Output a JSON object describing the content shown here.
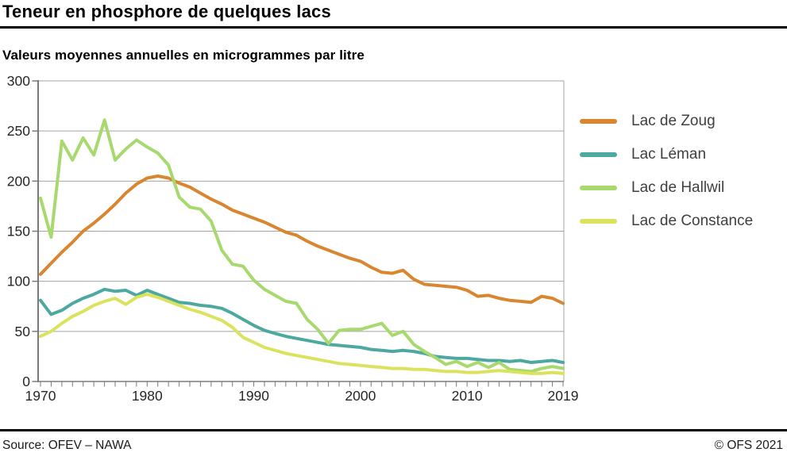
{
  "header": {
    "title": "Teneur en phosphore de quelques lacs",
    "subtitle": "Valeurs moyennes annuelles en microgrammes par litre"
  },
  "footer": {
    "source": "Source: OFEV – NAWA",
    "copyright": "© OFS 2021"
  },
  "chart_data": {
    "type": "line",
    "title": "Teneur en phosphore de quelques lacs",
    "subtitle": "Valeurs moyennes annuelles en microgrammes par litre",
    "xlabel": "",
    "ylabel": "microgrammes par litre",
    "ylim": [
      0,
      300
    ],
    "yticks": [
      0,
      50,
      100,
      150,
      200,
      250,
      300
    ],
    "xtick_labels": [
      "1970",
      "1980",
      "1990",
      "2000",
      "2010",
      "2019"
    ],
    "grid": true,
    "legend_position": "right",
    "x": [
      1970,
      1971,
      1972,
      1973,
      1974,
      1975,
      1976,
      1977,
      1978,
      1979,
      1980,
      1981,
      1982,
      1983,
      1984,
      1985,
      1986,
      1987,
      1988,
      1989,
      1990,
      1991,
      1992,
      1993,
      1994,
      1995,
      1996,
      1997,
      1998,
      1999,
      2000,
      2001,
      2002,
      2003,
      2004,
      2005,
      2006,
      2007,
      2008,
      2009,
      2010,
      2011,
      2012,
      2013,
      2014,
      2015,
      2016,
      2017,
      2018,
      2019
    ],
    "series": [
      {
        "name": "Lac de Zoug",
        "color": "#d8862f",
        "values": [
          107,
          118,
          129,
          139,
          150,
          158,
          167,
          177,
          188,
          197,
          203,
          205,
          203,
          198,
          194,
          188,
          182,
          177,
          171,
          167,
          163,
          159,
          154,
          149,
          146,
          140,
          135,
          131,
          127,
          123,
          120,
          114,
          109,
          108,
          111,
          102,
          97,
          96,
          95,
          94,
          91,
          85,
          86,
          83,
          81,
          80,
          79,
          85,
          83,
          78
        ]
      },
      {
        "name": "Lac Léman",
        "color": "#4da8a0",
        "values": [
          81,
          67,
          71,
          78,
          83,
          87,
          92,
          90,
          91,
          86,
          91,
          87,
          83,
          79,
          78,
          76,
          75,
          73,
          68,
          62,
          56,
          51,
          48,
          45,
          43,
          41,
          39,
          37,
          36,
          35,
          34,
          32,
          31,
          30,
          31,
          30,
          28,
          25,
          24,
          23,
          23,
          22,
          21,
          21,
          20,
          21,
          19,
          20,
          21,
          19
        ]
      },
      {
        "name": "Lac de Hallwil",
        "color": "#a8d96e",
        "values": [
          183,
          144,
          240,
          221,
          243,
          226,
          261,
          221,
          232,
          241,
          234,
          228,
          216,
          184,
          174,
          172,
          160,
          131,
          117,
          115,
          101,
          92,
          86,
          80,
          78,
          62,
          52,
          38,
          51,
          52,
          52,
          55,
          58,
          46,
          50,
          37,
          30,
          24,
          17,
          20,
          15,
          19,
          14,
          19,
          12,
          11,
          10,
          13,
          15,
          13
        ]
      },
      {
        "name": "Lac de Constance",
        "color": "#dbe35e",
        "values": [
          45,
          50,
          58,
          65,
          70,
          76,
          80,
          83,
          77,
          84,
          87,
          84,
          80,
          76,
          72,
          69,
          65,
          61,
          54,
          44,
          39,
          34,
          31,
          28,
          26,
          24,
          22,
          20,
          18,
          17,
          16,
          15,
          14,
          13,
          13,
          12,
          12,
          11,
          10,
          10,
          9,
          9,
          10,
          11,
          10,
          9,
          8,
          8,
          9,
          8
        ]
      }
    ],
    "style": {
      "grid_color": "#a3a3a3",
      "axis_color": "#7a7a7a",
      "tick_label_color": "#262626",
      "line_width": 4
    }
  }
}
